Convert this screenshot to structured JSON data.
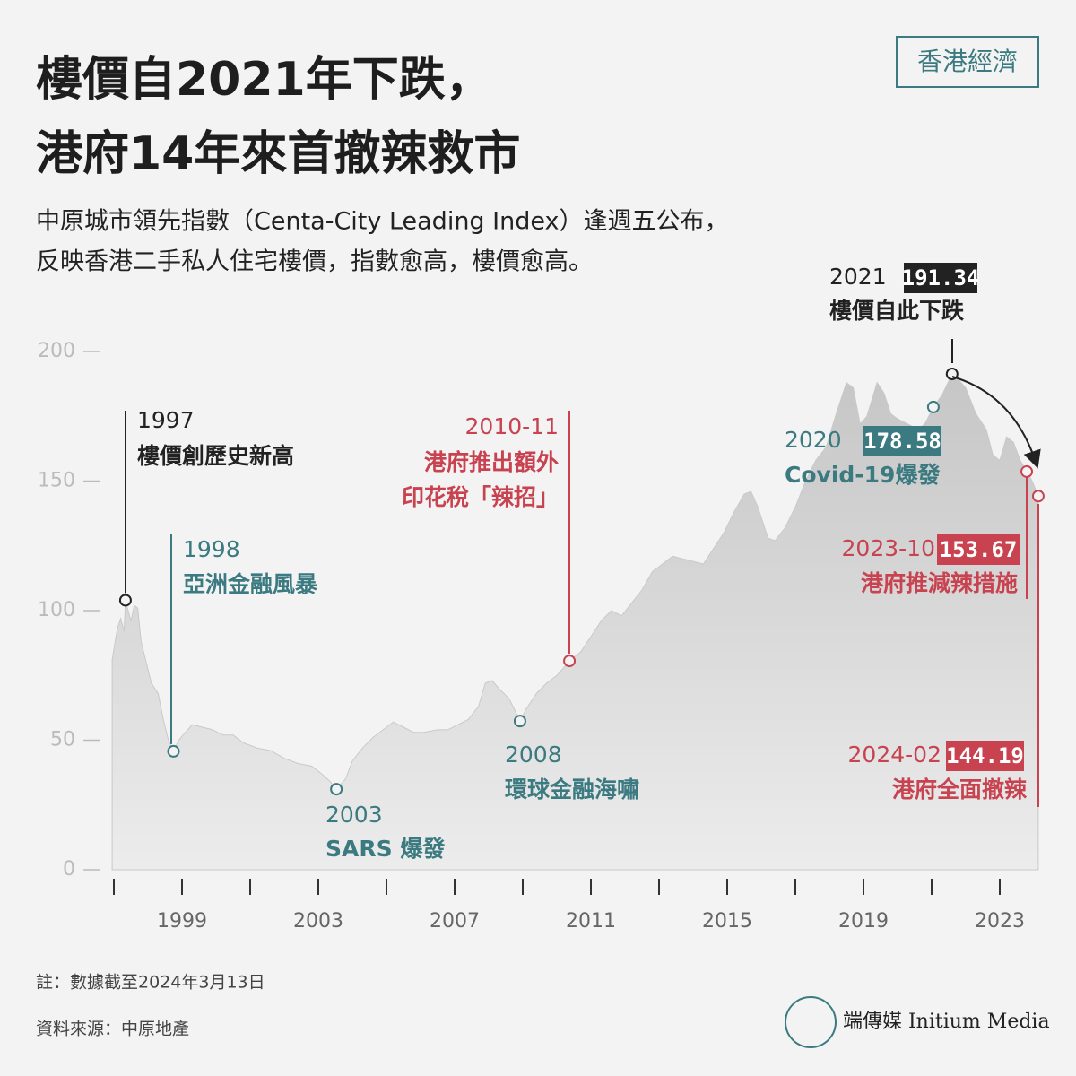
{
  "header": {
    "title": [
      "樓價自2021年下跌，",
      "港府14年來首撤辣救市"
    ],
    "subtitle": [
      "中原城市領先指數（Centa-City Leading Index）逢週五公布，",
      "反映香港二手私人住宅樓價，指數愈高，樓價愈高。"
    ],
    "badge": "香港經濟"
  },
  "chart_data": {
    "type": "area",
    "color": "#c9c9c9",
    "x": [
      1996.95,
      1997.1,
      1997.2,
      1997.3,
      1997.34,
      1997.5,
      1997.6,
      1997.7,
      1997.8,
      1997.95,
      1998.1,
      1998.3,
      1998.45,
      1998.6,
      1998.75,
      1998.9,
      1999.1,
      1999.3,
      1999.6,
      1999.9,
      2000.2,
      2000.5,
      2000.8,
      2001.2,
      2001.6,
      2002.0,
      2002.4,
      2002.8,
      2003.1,
      2003.35,
      2003.53,
      2003.8,
      2004.0,
      2004.3,
      2004.6,
      2004.9,
      2005.2,
      2005.5,
      2005.8,
      2006.1,
      2006.5,
      2006.8,
      2007.1,
      2007.4,
      2007.7,
      2007.9,
      2008.1,
      2008.3,
      2008.6,
      2008.92,
      2009.1,
      2009.4,
      2009.7,
      2010.0,
      2010.37,
      2010.7,
      2011.0,
      2011.3,
      2011.6,
      2011.9,
      2012.2,
      2012.5,
      2012.8,
      2013.1,
      2013.4,
      2013.7,
      2014.0,
      2014.3,
      2014.6,
      2014.9,
      2015.2,
      2015.5,
      2015.7,
      2015.9,
      2016.2,
      2016.4,
      2016.7,
      2017.0,
      2017.3,
      2017.6,
      2017.9,
      2018.2,
      2018.5,
      2018.7,
      2018.9,
      2019.1,
      2019.4,
      2019.6,
      2019.8,
      2020.0,
      2020.3,
      2020.6,
      2020.8,
      2021.05,
      2021.3,
      2021.6,
      2021.8,
      2022.0,
      2022.3,
      2022.6,
      2022.8,
      2023.0,
      2023.2,
      2023.4,
      2023.6,
      2023.79,
      2023.95,
      2024.13
    ],
    "values": [
      81,
      93,
      97,
      92,
      104,
      96,
      102,
      101,
      88,
      80,
      72,
      68,
      58,
      50,
      45.7,
      50,
      53,
      56,
      55,
      54,
      52,
      52,
      49,
      47,
      46,
      43,
      41,
      40,
      37,
      34,
      31.1,
      35,
      42,
      47,
      51,
      54,
      57,
      55,
      53,
      53,
      54,
      54,
      56,
      58,
      63,
      72,
      73,
      70,
      66,
      57.4,
      62,
      68,
      72,
      75,
      80.6,
      84,
      90,
      96,
      100,
      98,
      103,
      108,
      115,
      118,
      121,
      120,
      119,
      118,
      124,
      130,
      138,
      145,
      146,
      140,
      128,
      127,
      132,
      140,
      150,
      158,
      163,
      176,
      188,
      186,
      172,
      175,
      188,
      184,
      176,
      174,
      172,
      170,
      172,
      178.58,
      183,
      191.34,
      189,
      186,
      176,
      170,
      160,
      158,
      167,
      165,
      158,
      153.67,
      150,
      144.19
    ],
    "xlim": [
      1996.95,
      2024.25
    ],
    "xticks": [
      1999,
      2003,
      2007,
      2011,
      2015,
      2019,
      2023
    ],
    "minor_xticks": [
      1997,
      2001,
      2005,
      2009,
      2013,
      2017,
      2021
    ],
    "ylim": [
      0,
      200
    ],
    "yticks": [
      0,
      50,
      100,
      150,
      200
    ],
    "annotations": [
      {
        "label": "1997",
        "text": [
          "樓價創歷史新高"
        ],
        "x": 1997.34,
        "value": 104,
        "color": "#222222"
      },
      {
        "label": "1998",
        "text": [
          "亞洲金融風暴"
        ],
        "x": 1998.75,
        "value": 45.7,
        "color": "#3a7a80"
      },
      {
        "label": "2003",
        "text": [
          "SARS 爆發"
        ],
        "x": 2003.53,
        "value": 31.1,
        "color": "#3a7a80"
      },
      {
        "label": "2008",
        "text": [
          "環球金融海嘯"
        ],
        "x": 2008.92,
        "value": 57.4,
        "color": "#3a7a80"
      },
      {
        "label": "2010-11",
        "text": [
          "港府推出額外",
          "印花稅「辣招」"
        ],
        "x": 2010.37,
        "value": 80.6,
        "color": "#c8424f"
      },
      {
        "label": "2020",
        "text": [
          "Covid-19爆發"
        ],
        "x": 2021.05,
        "value": 178.58,
        "color": "#3a7a80"
      },
      {
        "label": "2021",
        "text": [
          "樓價自此下跌"
        ],
        "x": 2021.6,
        "value": 191.34,
        "color": "#222222"
      },
      {
        "label": "2023-10",
        "text": [
          "港府推減辣措施"
        ],
        "x": 2023.79,
        "value": 153.67,
        "color": "#c8424f"
      },
      {
        "label": "2024-02",
        "text": [
          "港府全面撤辣"
        ],
        "x": 2024.13,
        "value": 144.19,
        "color": "#c8424f"
      }
    ]
  },
  "footer": {
    "note": "註：數據截至2024年3月13日",
    "source": "資料來源：中原地產",
    "logo": "端傳媒 Initium Media"
  }
}
